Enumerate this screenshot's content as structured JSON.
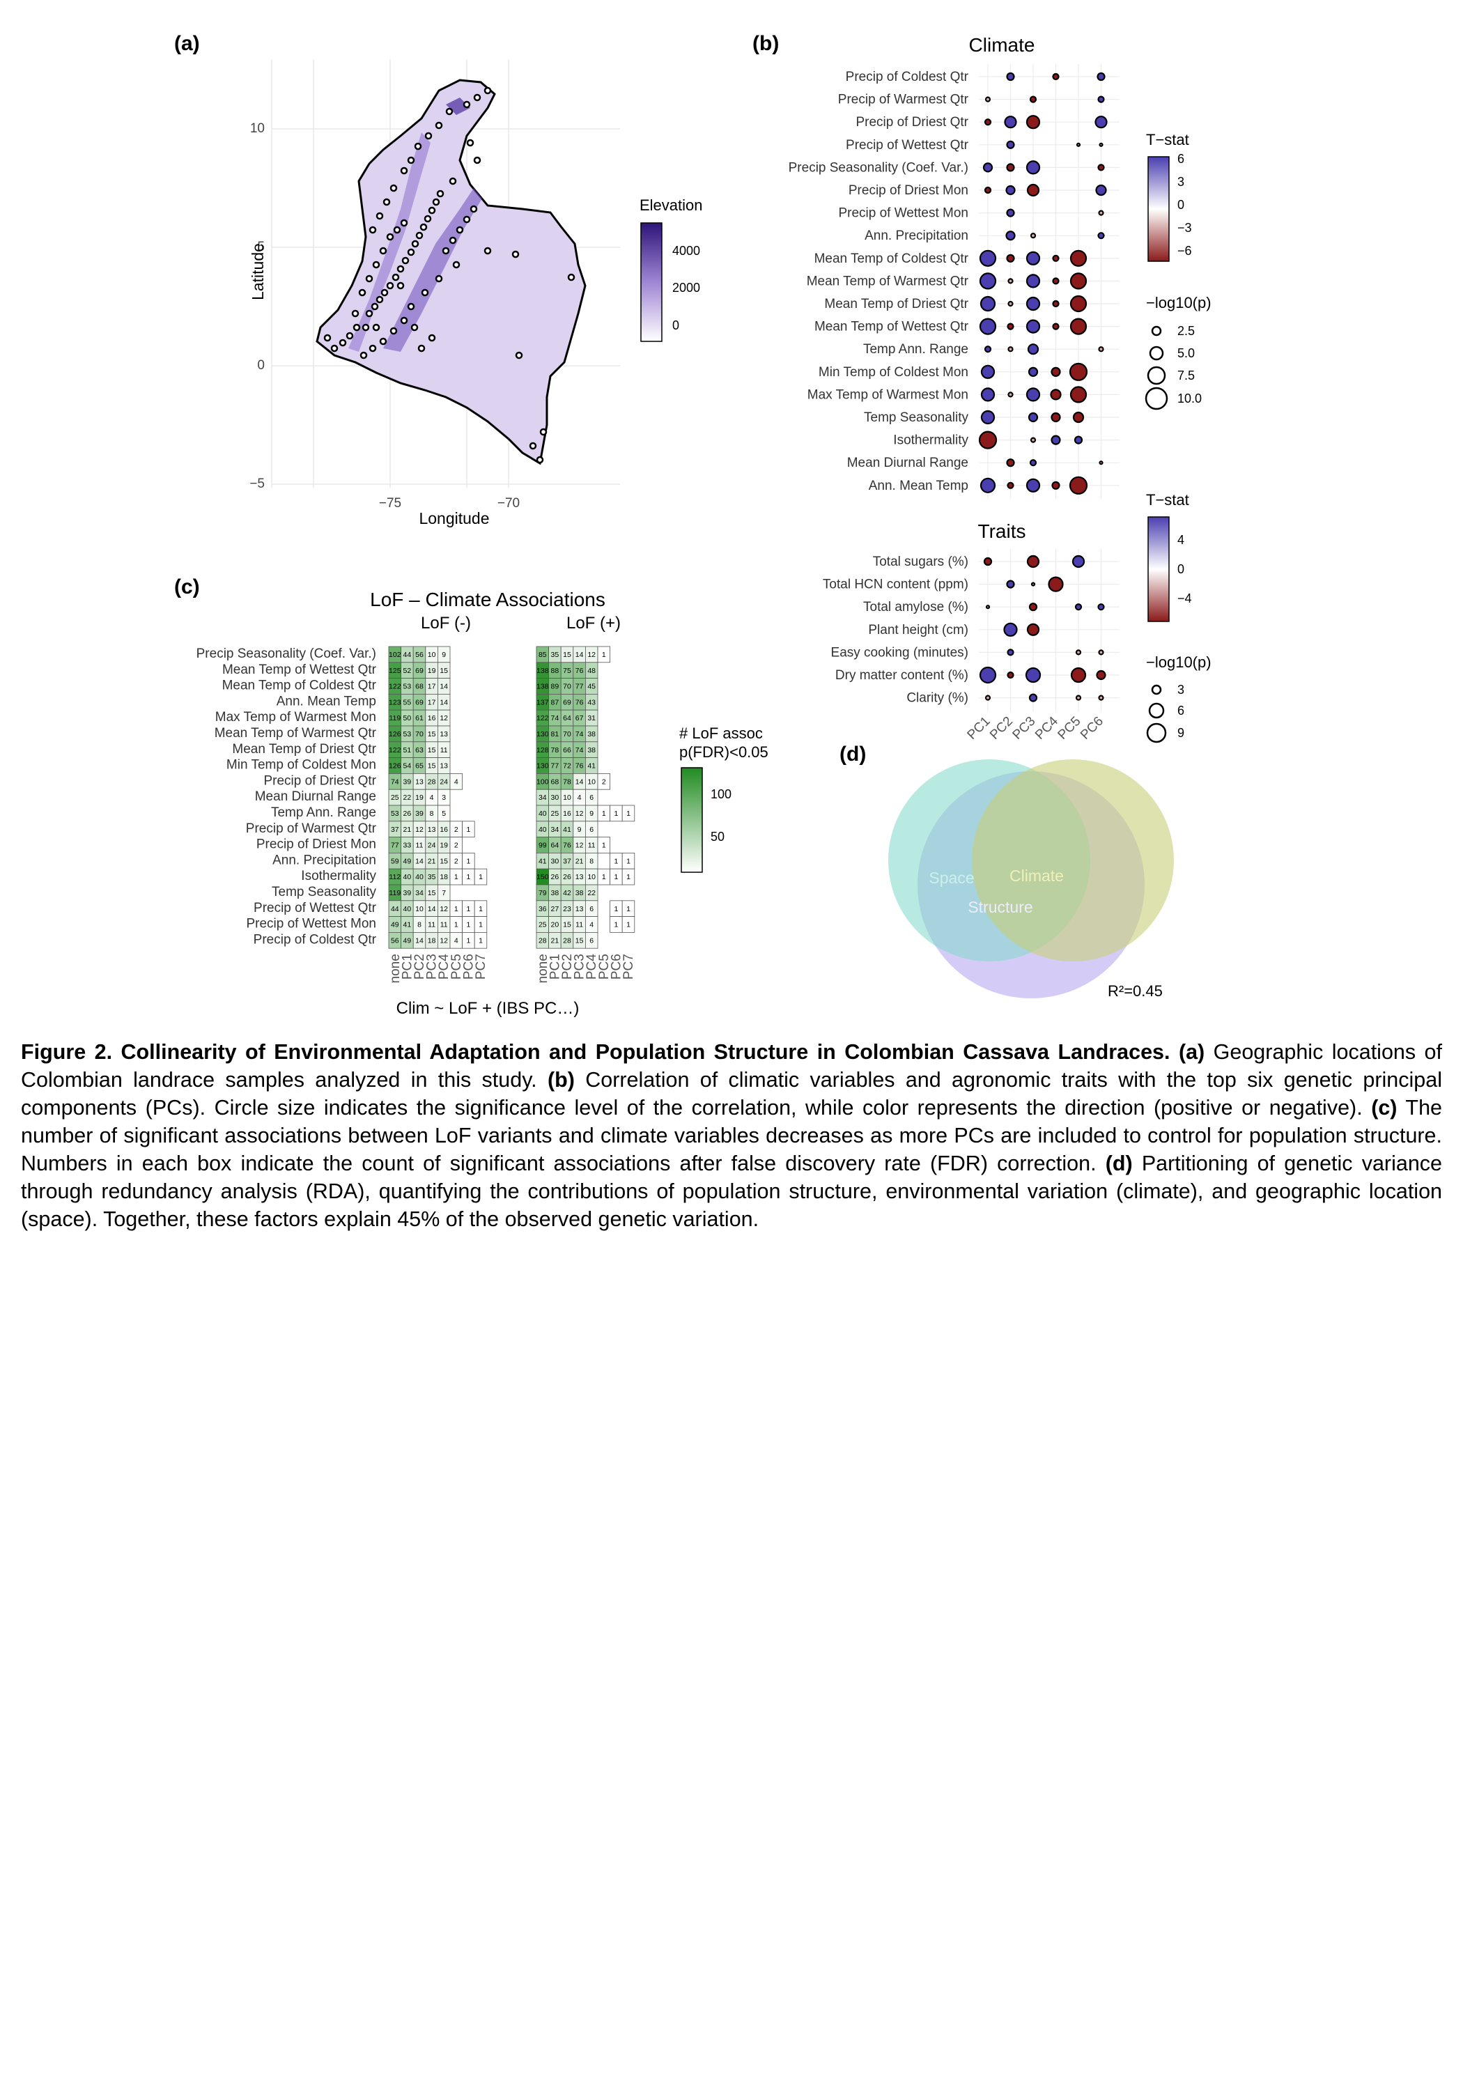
{
  "panels": {
    "a": {
      "label": "(a)",
      "x_label": "Longitude",
      "y_label": "Latitude",
      "x_ticks": [
        "−75",
        "−70"
      ],
      "y_ticks": [
        "10",
        "5",
        "0",
        "−5"
      ],
      "legend_title": "Elevation",
      "legend_ticks": [
        "4000",
        "2000",
        "0"
      ],
      "colors": {
        "low": "#f4f0fa",
        "high": "#2d1579",
        "outline": "#000000"
      }
    },
    "b": {
      "label": "(b)",
      "climate_title": "Climate",
      "traits_title": "Traits",
      "pc_labels": [
        "PC1",
        "PC2",
        "PC3",
        "PC4",
        "PC5",
        "PC6"
      ],
      "climate_rows": [
        "Precip of Coldest Qtr",
        "Precip of Warmest Qtr",
        "Precip of Driest Qtr",
        "Precip of Wettest Qtr",
        "Precip Seasonality (Coef. Var.)",
        "Precip of Driest Mon",
        "Precip of Wettest Mon",
        "Ann. Precipitation",
        "Mean Temp of Coldest Qtr",
        "Mean Temp of Warmest Qtr",
        "Mean Temp of Driest Qtr",
        "Mean Temp of Wettest Qtr",
        "Temp Ann. Range",
        "Min Temp of Coldest Mon",
        "Max Temp of Warmest Mon",
        "Temp Seasonality",
        "Isothermality",
        "Mean Diurnal Range",
        "Ann. Mean Temp"
      ],
      "trait_rows": [
        "Total sugars (%)",
        "Total HCN content (ppm)",
        "Total amylose (%)",
        "Plant height (cm)",
        "Easy cooking (minutes)",
        "Dry matter content (%)",
        "Clarity (%)"
      ],
      "climate_legend": {
        "title": "T−stat",
        "ticks": [
          "6",
          "3",
          "0",
          "−3",
          "−6"
        ],
        "size_title": "−log10(p)",
        "size_ticks": [
          "2.5",
          "5.0",
          "7.5",
          "10.0"
        ]
      },
      "traits_legend": {
        "title": "T−stat",
        "ticks": [
          "4",
          "0",
          "−4"
        ],
        "size_title": "−log10(p)",
        "size_ticks": [
          "3",
          "6",
          "9"
        ]
      },
      "colors": {
        "positive": "#4b3fb0",
        "negative": "#8b1a1a",
        "neutral": "#ffffff"
      }
    },
    "c": {
      "label": "(c)",
      "title": "LoF – Climate Associations",
      "group_labels": [
        "LoF (-)",
        "LoF (+)"
      ],
      "col_labels": [
        "none",
        "PC1",
        "PC2",
        "PC3",
        "PC4",
        "PC5",
        "PC6",
        "PC7"
      ],
      "x_label": "Clim ~ LoF + (IBS PC…)",
      "legend_title_1": "# LoF assoc",
      "legend_title_2": "p(FDR)<0.05",
      "legend_ticks": [
        "100",
        "50"
      ],
      "colors": {
        "high": "#228b22",
        "low": "#ffffff"
      },
      "rows": [
        "Precip Seasonality (Coef. Var.)",
        "Mean Temp of Wettest Qtr",
        "Mean Temp of Coldest Qtr",
        "Ann. Mean Temp",
        "Max Temp of Warmest Mon",
        "Mean Temp of Warmest Qtr",
        "Mean Temp of Driest Qtr",
        "Min Temp of Coldest Mon",
        "Precip of Driest Qtr",
        "Mean Diurnal Range",
        "Temp Ann. Range",
        "Precip of Warmest Qtr",
        "Precip of Driest Mon",
        "Ann. Precipitation",
        "Isothermality",
        "Temp Seasonality",
        "Precip of Wettest Qtr",
        "Precip of Wettest Mon",
        "Precip of Coldest Qtr"
      ],
      "lof_neg": [
        [
          102,
          44,
          56,
          10,
          9
        ],
        [
          125,
          52,
          69,
          19,
          15
        ],
        [
          122,
          53,
          68,
          17,
          14
        ],
        [
          123,
          55,
          69,
          17,
          14
        ],
        [
          119,
          50,
          61,
          16,
          12
        ],
        [
          126,
          53,
          70,
          15,
          13
        ],
        [
          122,
          51,
          63,
          15,
          11
        ],
        [
          126,
          54,
          65,
          15,
          13
        ],
        [
          74,
          39,
          13,
          28,
          24,
          4
        ],
        [
          25,
          22,
          19,
          4,
          3
        ],
        [
          53,
          26,
          39,
          8,
          5
        ],
        [
          37,
          21,
          12,
          13,
          16,
          2,
          1
        ],
        [
          77,
          33,
          11,
          24,
          19,
          2
        ],
        [
          59,
          49,
          14,
          21,
          15,
          2,
          1
        ],
        [
          112,
          40,
          40,
          35,
          18,
          1,
          1,
          1
        ],
        [
          119,
          39,
          34,
          15,
          7
        ],
        [
          44,
          40,
          10,
          14,
          12,
          1,
          1,
          1
        ],
        [
          49,
          41,
          8,
          11,
          11,
          1,
          1,
          1
        ],
        [
          56,
          49,
          14,
          18,
          12,
          4,
          1,
          1
        ]
      ],
      "lof_pos": [
        [
          85,
          35,
          15,
          14,
          12,
          1
        ],
        [
          138,
          88,
          75,
          76,
          48
        ],
        [
          138,
          89,
          70,
          77,
          45
        ],
        [
          137,
          87,
          69,
          76,
          43
        ],
        [
          122,
          74,
          64,
          67,
          31
        ],
        [
          130,
          81,
          70,
          74,
          38
        ],
        [
          128,
          78,
          66,
          74,
          38
        ],
        [
          130,
          77,
          72,
          76,
          41
        ],
        [
          100,
          68,
          78,
          14,
          10,
          2
        ],
        [
          34,
          30,
          10,
          4,
          6
        ],
        [
          40,
          25,
          16,
          12,
          9,
          1,
          1,
          1
        ],
        [
          40,
          34,
          41,
          9,
          6
        ],
        [
          99,
          64,
          76,
          12,
          11,
          1
        ],
        [
          41,
          30,
          37,
          21,
          8,
          null,
          1,
          1
        ],
        [
          150,
          26,
          26,
          13,
          10,
          1,
          1,
          1
        ],
        [
          79,
          38,
          42,
          38,
          22
        ],
        [
          36,
          27,
          23,
          13,
          6,
          null,
          1,
          1
        ],
        [
          25,
          20,
          15,
          11,
          4,
          null,
          1,
          1
        ],
        [
          28,
          21,
          28,
          15,
          6
        ]
      ]
    },
    "d": {
      "label": "(d)",
      "sets": [
        "Space",
        "Climate",
        "Structure"
      ],
      "r2": "R²=0.45",
      "colors": {
        "space": "#7fd8c8",
        "climate": "#c8cf7a",
        "structure": "#a99af0"
      }
    }
  },
  "chart_data": {
    "type": "table",
    "title": "LoF – Climate Associations",
    "xlabel": "Clim ~ LoF + (IBS PC…)",
    "groups": [
      "LoF (-)",
      "LoF (+)"
    ]
  },
  "caption": {
    "figure_label": "Figure 2. Collinearity of Environmental Adaptation and Population Structure in Colombian Cassava Landraces.",
    "a_label": "(a)",
    "a_text": " Geographic locations of Colombian landrace samples analyzed in this study. ",
    "b_label": "(b)",
    "b_text": " Correlation of climatic variables and agronomic traits with the top six genetic principal components (PCs). Circle size indicates the significance level of the correlation, while color represents the direction (positive or negative). ",
    "c_label": "(c)",
    "c_text": " The number of significant associations between LoF variants and climate variables decreases as more PCs are included to control for population structure. Numbers in each box indicate the count of significant associations after false discovery rate (FDR) correction. ",
    "d_label": "(d)",
    "d_text": " Partitioning of genetic variance through redundancy analysis (RDA), quantifying the contributions of population structure, environmental variation (climate), and geographic location (space). Together, these factors explain 45% of the observed genetic variation."
  }
}
